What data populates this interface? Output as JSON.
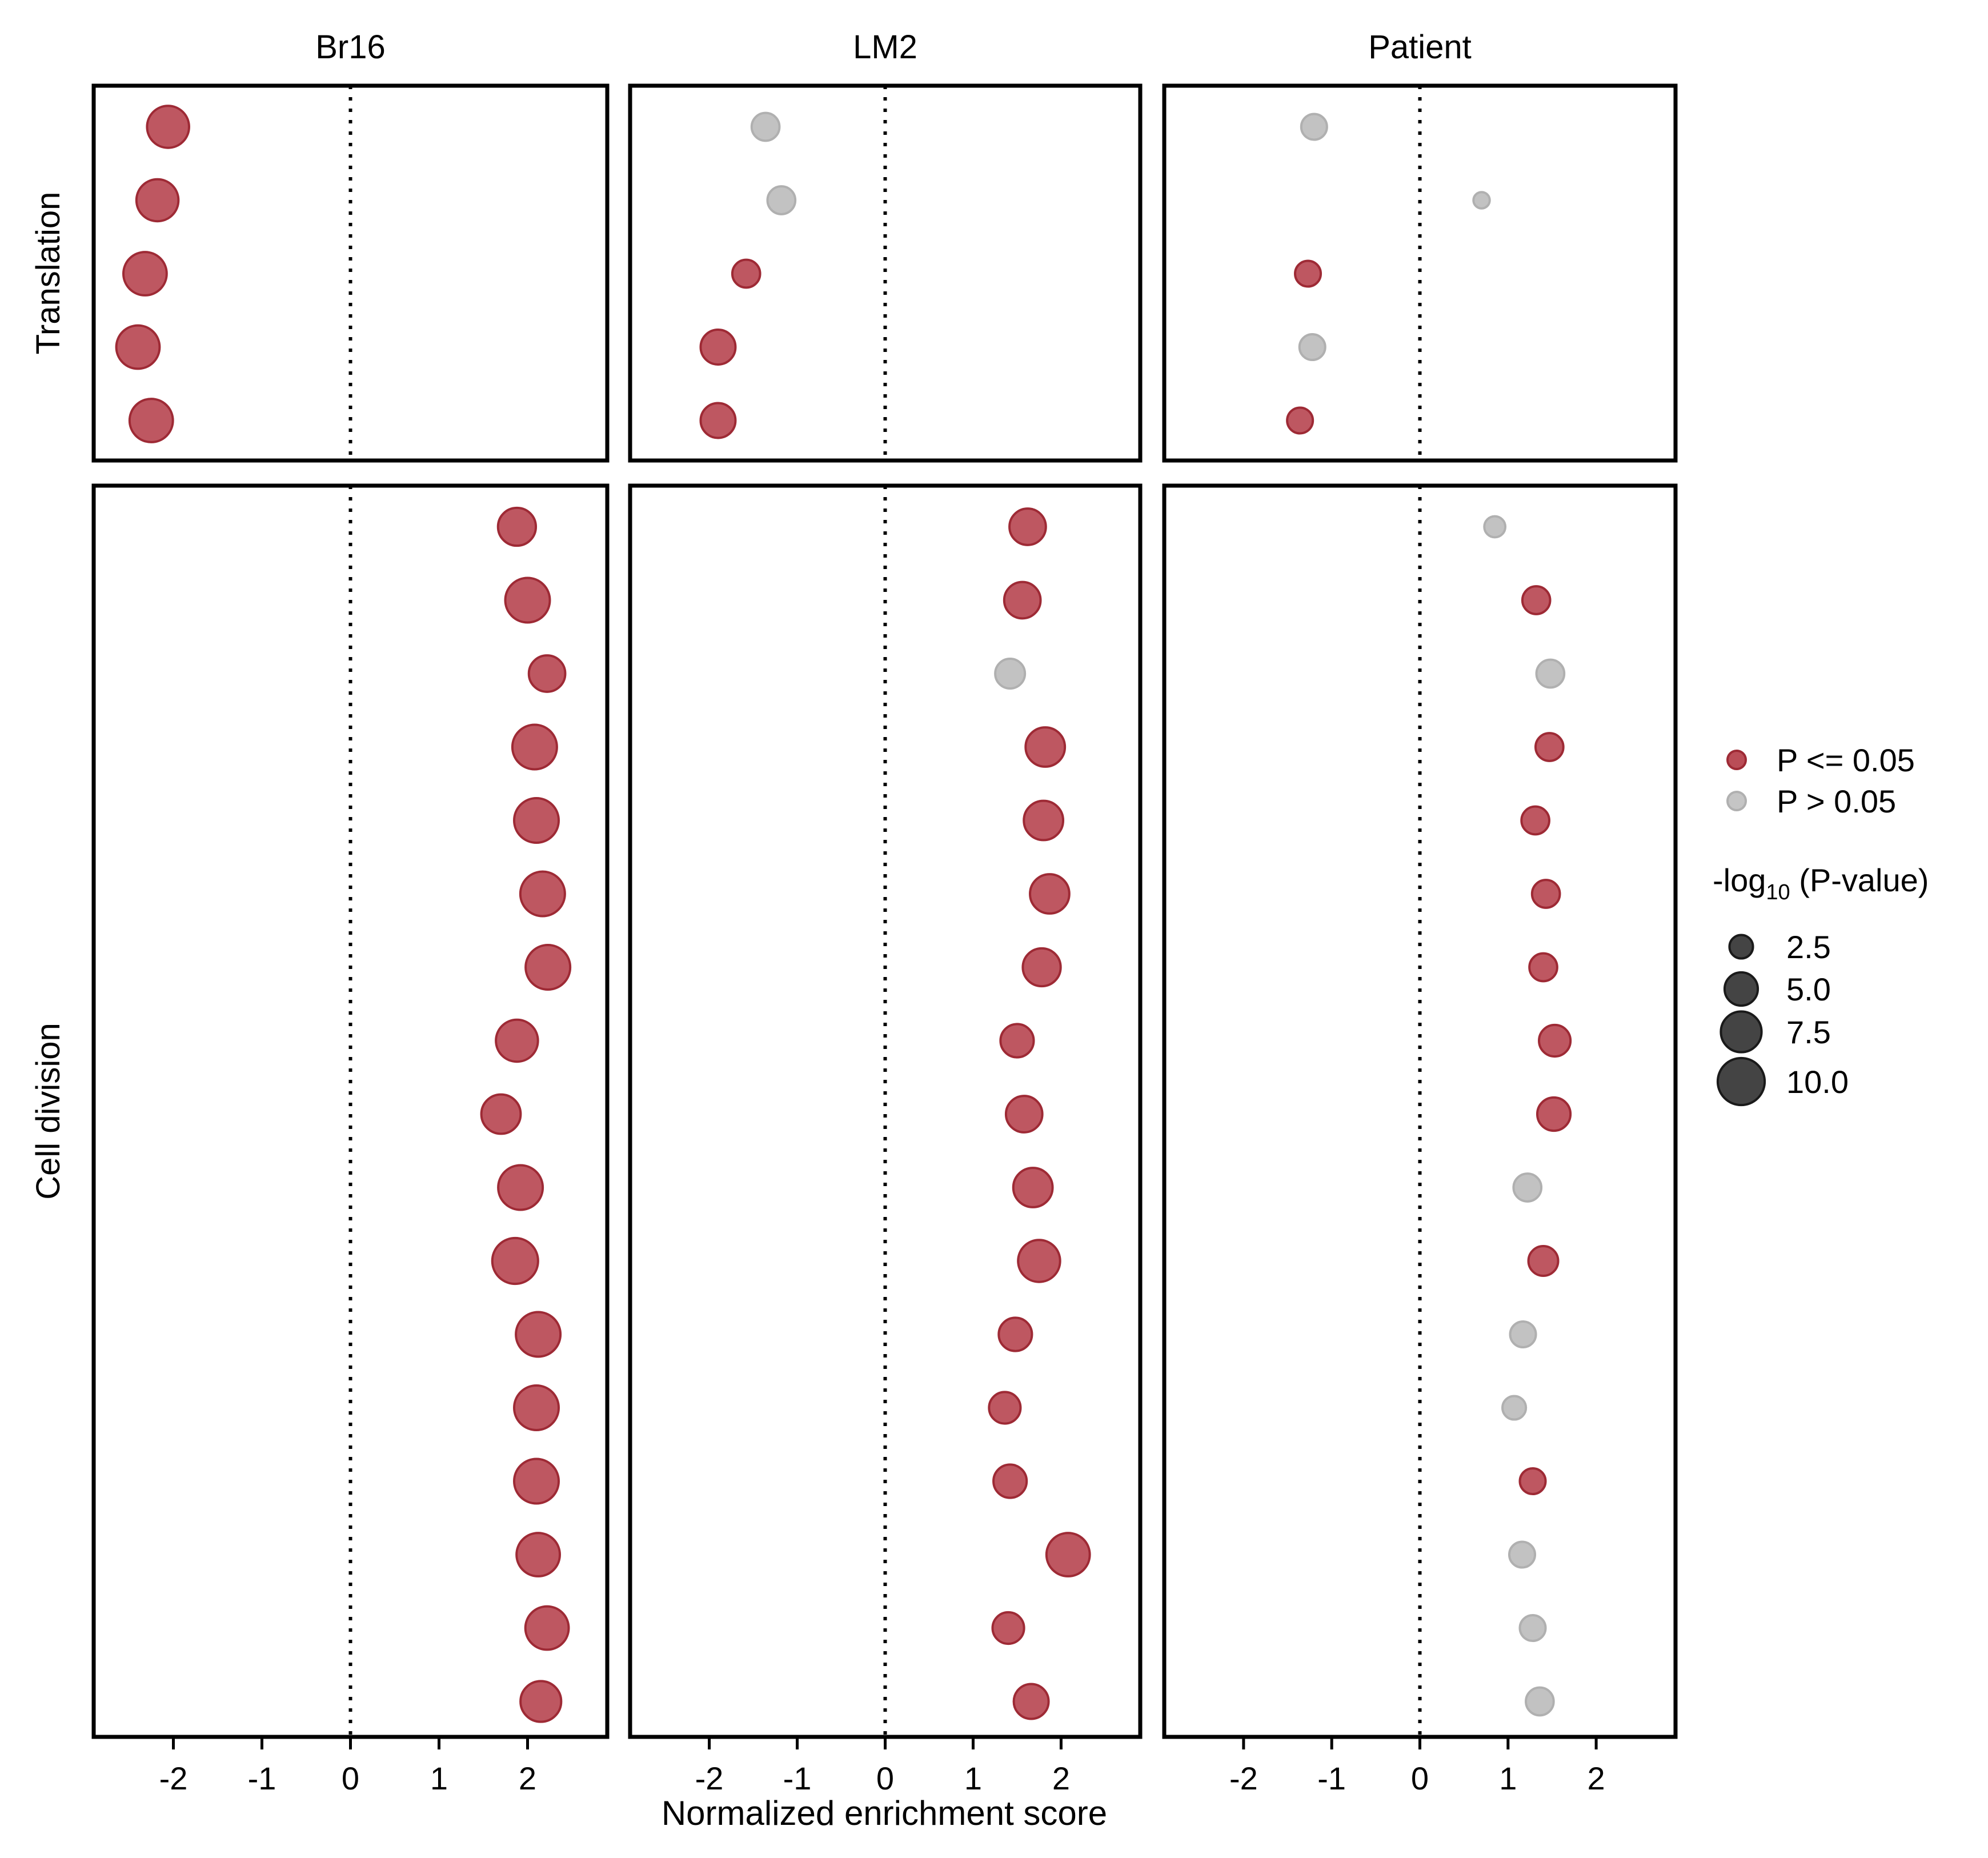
{
  "colors": {
    "significant": "#b33a45",
    "not_significant": "#bfbfbf",
    "frame": "#000000",
    "size_key": "#444444"
  },
  "chart_data": {
    "type": "scatter",
    "xlabel": "Normalized enrichment score",
    "xlim": [
      -2.9,
      2.9
    ],
    "x_ticks": [
      -2,
      -1,
      0,
      1,
      2
    ],
    "x_tick_labels": [
      "-2",
      "-1",
      "0",
      "1",
      "2"
    ],
    "reference_line_x": 0,
    "grid": false,
    "facet_columns": [
      "Br16",
      "LM2",
      "Patient"
    ],
    "facet_rows": [
      "Translation",
      "Cell division"
    ],
    "row_item_counts": {
      "Translation": 5,
      "Cell division": 17
    },
    "legend": {
      "position": "right",
      "color_entries": [
        {
          "key": "significant",
          "label": "P <= 0.05"
        },
        {
          "key": "not_significant",
          "label": "P > 0.05"
        }
      ],
      "size_title_prefix": "-log",
      "size_title_subscript": "10",
      "size_title_suffix": " (P-value)",
      "size_entries": [
        {
          "value": 2.5,
          "label": "2.5"
        },
        {
          "value": 5.0,
          "label": "5.0"
        },
        {
          "value": 7.5,
          "label": "7.5"
        },
        {
          "value": 10.0,
          "label": "10.0"
        }
      ]
    },
    "panels": [
      {
        "column": "Br16",
        "row": "Translation",
        "points": [
          {
            "nes": -2.06,
            "neglog10p": 8.0,
            "sig": true
          },
          {
            "nes": -2.18,
            "neglog10p": 8.0,
            "sig": true
          },
          {
            "nes": -2.32,
            "neglog10p": 8.5,
            "sig": true
          },
          {
            "nes": -2.4,
            "neglog10p": 8.5,
            "sig": true
          },
          {
            "nes": -2.25,
            "neglog10p": 8.5,
            "sig": true
          }
        ]
      },
      {
        "column": "LM2",
        "row": "Translation",
        "points": [
          {
            "nes": -1.36,
            "neglog10p": 3.5,
            "sig": false
          },
          {
            "nes": -1.18,
            "neglog10p": 3.5,
            "sig": false
          },
          {
            "nes": -1.58,
            "neglog10p": 3.5,
            "sig": true
          },
          {
            "nes": -1.9,
            "neglog10p": 5.5,
            "sig": true
          },
          {
            "nes": -1.9,
            "neglog10p": 5.5,
            "sig": true
          }
        ]
      },
      {
        "column": "Patient",
        "row": "Translation",
        "points": [
          {
            "nes": -1.2,
            "neglog10p": 3.0,
            "sig": false
          },
          {
            "nes": 0.7,
            "neglog10p": 1.2,
            "sig": false
          },
          {
            "nes": -1.27,
            "neglog10p": 3.0,
            "sig": true
          },
          {
            "nes": -1.22,
            "neglog10p": 3.0,
            "sig": false
          },
          {
            "nes": -1.36,
            "neglog10p": 3.0,
            "sig": true
          }
        ]
      },
      {
        "column": "Br16",
        "row": "Cell division",
        "points": [
          {
            "nes": 1.88,
            "neglog10p": 6.5,
            "sig": true
          },
          {
            "nes": 2.0,
            "neglog10p": 9.0,
            "sig": true
          },
          {
            "nes": 2.22,
            "neglog10p": 6.0,
            "sig": true
          },
          {
            "nes": 2.08,
            "neglog10p": 9.0,
            "sig": true
          },
          {
            "nes": 2.1,
            "neglog10p": 9.0,
            "sig": true
          },
          {
            "nes": 2.17,
            "neglog10p": 9.0,
            "sig": true
          },
          {
            "nes": 2.23,
            "neglog10p": 9.0,
            "sig": true
          },
          {
            "nes": 1.88,
            "neglog10p": 8.0,
            "sig": true
          },
          {
            "nes": 1.7,
            "neglog10p": 7.0,
            "sig": true
          },
          {
            "nes": 1.92,
            "neglog10p": 9.0,
            "sig": true
          },
          {
            "nes": 1.86,
            "neglog10p": 9.5,
            "sig": true
          },
          {
            "nes": 2.12,
            "neglog10p": 9.0,
            "sig": true
          },
          {
            "nes": 2.1,
            "neglog10p": 9.0,
            "sig": true
          },
          {
            "nes": 2.1,
            "neglog10p": 9.0,
            "sig": true
          },
          {
            "nes": 2.12,
            "neglog10p": 8.5,
            "sig": true
          },
          {
            "nes": 2.22,
            "neglog10p": 8.5,
            "sig": true
          },
          {
            "nes": 2.15,
            "neglog10p": 7.5,
            "sig": true
          }
        ]
      },
      {
        "column": "LM2",
        "row": "Cell division",
        "points": [
          {
            "nes": 1.62,
            "neglog10p": 6.0,
            "sig": true
          },
          {
            "nes": 1.56,
            "neglog10p": 6.0,
            "sig": true
          },
          {
            "nes": 1.42,
            "neglog10p": 4.0,
            "sig": false
          },
          {
            "nes": 1.82,
            "neglog10p": 7.0,
            "sig": true
          },
          {
            "nes": 1.8,
            "neglog10p": 7.0,
            "sig": true
          },
          {
            "nes": 1.87,
            "neglog10p": 7.0,
            "sig": true
          },
          {
            "nes": 1.78,
            "neglog10p": 6.5,
            "sig": true
          },
          {
            "nes": 1.5,
            "neglog10p": 5.0,
            "sig": true
          },
          {
            "nes": 1.58,
            "neglog10p": 6.0,
            "sig": true
          },
          {
            "nes": 1.68,
            "neglog10p": 7.0,
            "sig": true
          },
          {
            "nes": 1.75,
            "neglog10p": 8.0,
            "sig": true
          },
          {
            "nes": 1.48,
            "neglog10p": 5.0,
            "sig": true
          },
          {
            "nes": 1.36,
            "neglog10p": 4.5,
            "sig": true
          },
          {
            "nes": 1.42,
            "neglog10p": 5.0,
            "sig": true
          },
          {
            "nes": 2.08,
            "neglog10p": 8.5,
            "sig": true
          },
          {
            "nes": 1.4,
            "neglog10p": 4.5,
            "sig": true
          },
          {
            "nes": 1.66,
            "neglog10p": 5.5,
            "sig": true
          }
        ]
      },
      {
        "column": "Patient",
        "row": "Cell division",
        "points": [
          {
            "nes": 0.85,
            "neglog10p": 2.0,
            "sig": false
          },
          {
            "nes": 1.32,
            "neglog10p": 3.5,
            "sig": true
          },
          {
            "nes": 1.48,
            "neglog10p": 3.5,
            "sig": false
          },
          {
            "nes": 1.47,
            "neglog10p": 3.5,
            "sig": true
          },
          {
            "nes": 1.31,
            "neglog10p": 3.5,
            "sig": true
          },
          {
            "nes": 1.43,
            "neglog10p": 3.5,
            "sig": true
          },
          {
            "nes": 1.4,
            "neglog10p": 3.5,
            "sig": true
          },
          {
            "nes": 1.53,
            "neglog10p": 4.5,
            "sig": true
          },
          {
            "nes": 1.52,
            "neglog10p": 5.0,
            "sig": true
          },
          {
            "nes": 1.22,
            "neglog10p": 3.5,
            "sig": false
          },
          {
            "nes": 1.4,
            "neglog10p": 4.0,
            "sig": true
          },
          {
            "nes": 1.17,
            "neglog10p": 3.0,
            "sig": false
          },
          {
            "nes": 1.07,
            "neglog10p": 2.5,
            "sig": false
          },
          {
            "nes": 1.28,
            "neglog10p": 3.0,
            "sig": true
          },
          {
            "nes": 1.16,
            "neglog10p": 3.0,
            "sig": false
          },
          {
            "nes": 1.28,
            "neglog10p": 3.0,
            "sig": false
          },
          {
            "nes": 1.36,
            "neglog10p": 3.5,
            "sig": false
          }
        ]
      }
    ]
  }
}
